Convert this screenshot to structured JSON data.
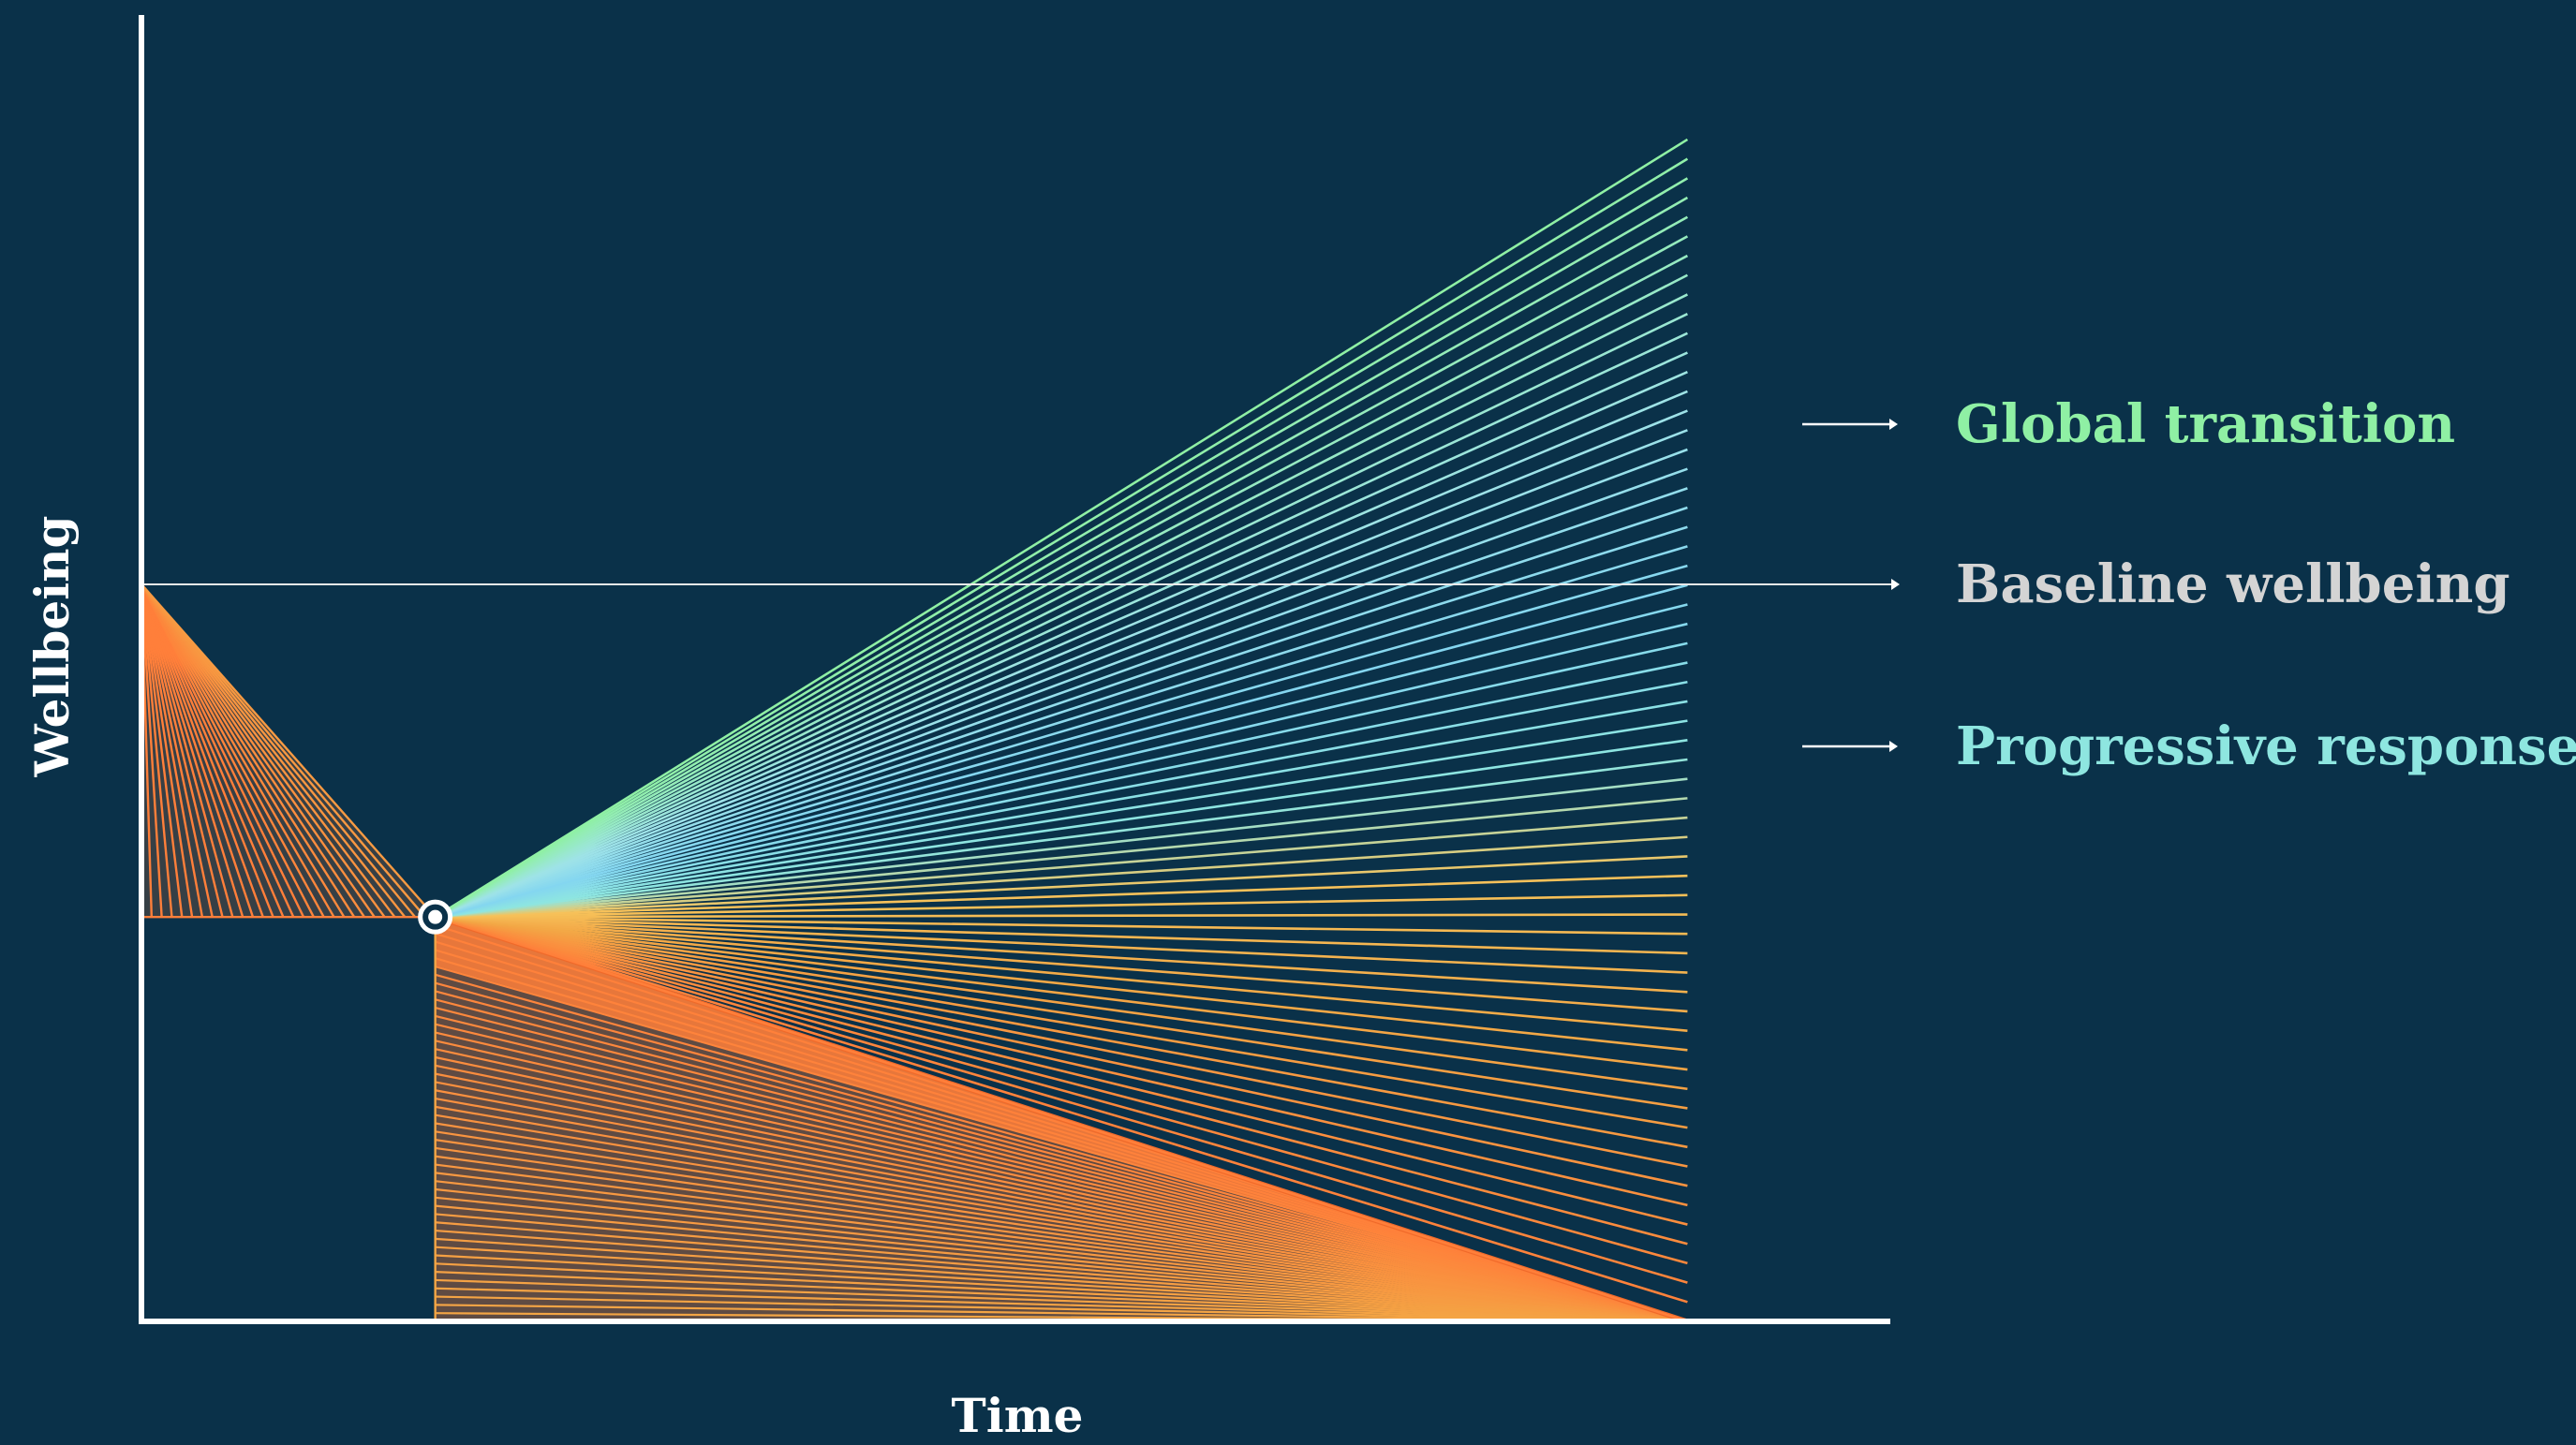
{
  "axes": {
    "x_title": "Time",
    "y_title": "Wellbeing",
    "axis_color": "#ffffff"
  },
  "legend": {
    "items": [
      {
        "key": "global",
        "label": "Global transition",
        "color": "#8ff0a4"
      },
      {
        "key": "baseline",
        "label": "Baseline wellbeing",
        "color": "#d4d4d4"
      },
      {
        "key": "progressive",
        "label": "Progressive responses",
        "color": "#8ee6e0"
      }
    ]
  },
  "colors": {
    "background": "#0a3149",
    "orange": "#ff7f3a",
    "orange_dark": "#f06a2a",
    "amber": "#f3a645",
    "teal": "#8ee6e0",
    "blue": "#84d6f0",
    "green": "#8ff0a4",
    "marker": "#ffffff"
  },
  "chart_data": {
    "type": "line",
    "title": "",
    "xlabel": "Time",
    "ylabel": "Wellbeing",
    "xlim": [
      0,
      1
    ],
    "ylim": [
      0,
      1
    ],
    "baseline_level": 0.565,
    "shock_point": {
      "x": 0.168,
      "y": 0.31
    },
    "pre_shock_fan": {
      "from": {
        "x": 0.0,
        "y": 0.565
      },
      "to": {
        "x": 0.168,
        "y": 0.31
      },
      "line_count": 30
    },
    "post_shock_fan": {
      "origin": {
        "x": 0.168,
        "y": 0.31
      },
      "end_x": 0.884,
      "end_y_min": 0.0,
      "end_y_max": 0.906,
      "line_count": 62
    },
    "decline_fan": {
      "drop_x": 0.168,
      "end_x": 0.884,
      "line_count": 50
    },
    "series": [
      {
        "name": "Global transition",
        "end_y": 0.906
      },
      {
        "name": "Baseline wellbeing",
        "end_y": 0.565
      },
      {
        "name": "Progressive responses",
        "end_y": 0.44
      }
    ]
  }
}
